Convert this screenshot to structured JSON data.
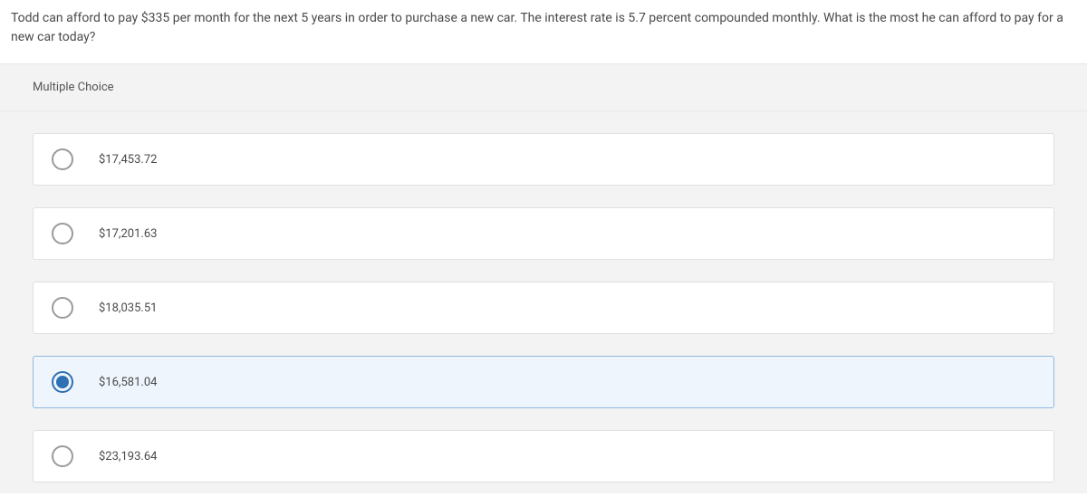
{
  "question": {
    "text": "Todd can afford to pay $335 per month for the next 5 years in order to purchase a new car. The interest rate is 5.7 percent compounded monthly. What is the most he can afford to pay for a new car today?"
  },
  "mc": {
    "header": "Multiple Choice",
    "options": [
      {
        "label": "$17,453.72",
        "selected": false
      },
      {
        "label": "$17,201.63",
        "selected": false
      },
      {
        "label": "$18,035.51",
        "selected": false
      },
      {
        "label": "$16,581.04",
        "selected": true
      },
      {
        "label": "$23,193.64",
        "selected": false
      }
    ]
  },
  "colors": {
    "page_bg": "#ffffff",
    "panel_bg": "#f3f3f3",
    "option_bg": "#ffffff",
    "option_border": "#e0e0e0",
    "selected_bg": "#eef5fc",
    "selected_border": "#8fb8e0",
    "radio_border": "#9a9a9a",
    "radio_fill": "#2f6fb3",
    "text": "#4a4a4a"
  }
}
